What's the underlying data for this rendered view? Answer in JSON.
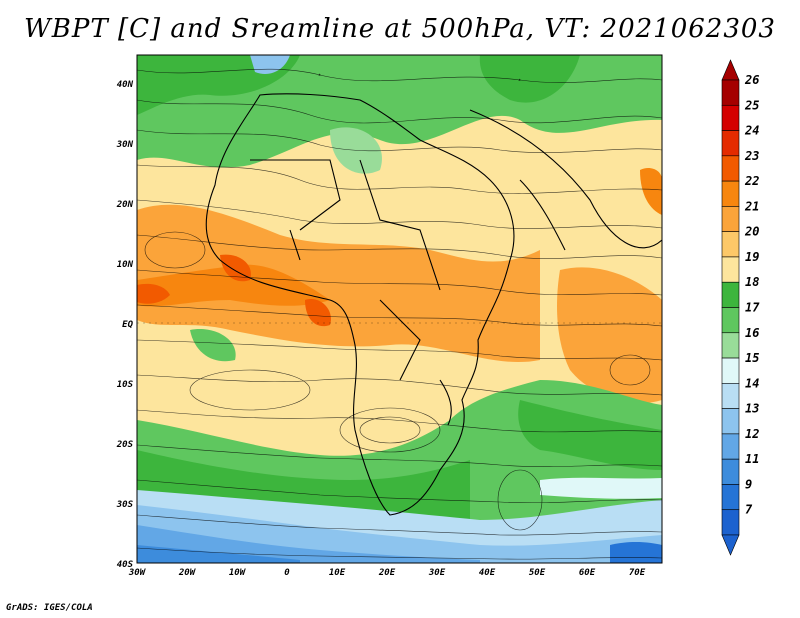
{
  "title": "WBPT [C] and Sreamline at 500hPa, VT: 2021062303",
  "credit": "GrADS: IGES/COLA",
  "map": {
    "lon_labels": [
      "30W",
      "20W",
      "10W",
      "0",
      "10E",
      "20E",
      "30E",
      "40E",
      "50E",
      "60E",
      "70E"
    ],
    "lat_labels": [
      "40N",
      "30N",
      "20N",
      "10N",
      "EQ",
      "10S",
      "20S",
      "30S",
      "40S"
    ],
    "lon_range": [
      -30,
      75
    ],
    "lat_range": [
      -40,
      45
    ]
  },
  "colorbar": {
    "levels": [
      "26",
      "25",
      "24",
      "23",
      "22",
      "21",
      "20",
      "19",
      "18",
      "17",
      "16",
      "15",
      "14",
      "13",
      "12",
      "11",
      "9",
      "7"
    ],
    "colors": [
      "#a50000",
      "#d40000",
      "#e42b00",
      "#f25a00",
      "#f7860f",
      "#fba43a",
      "#fdc868",
      "#fde59d",
      "#3db53d",
      "#5fc75f",
      "#99dc99",
      "#e0f8f8",
      "#b9def4",
      "#8dc4ee",
      "#62a7e6",
      "#3d8cdc",
      "#2574d6",
      "#1c62cf"
    ]
  }
}
